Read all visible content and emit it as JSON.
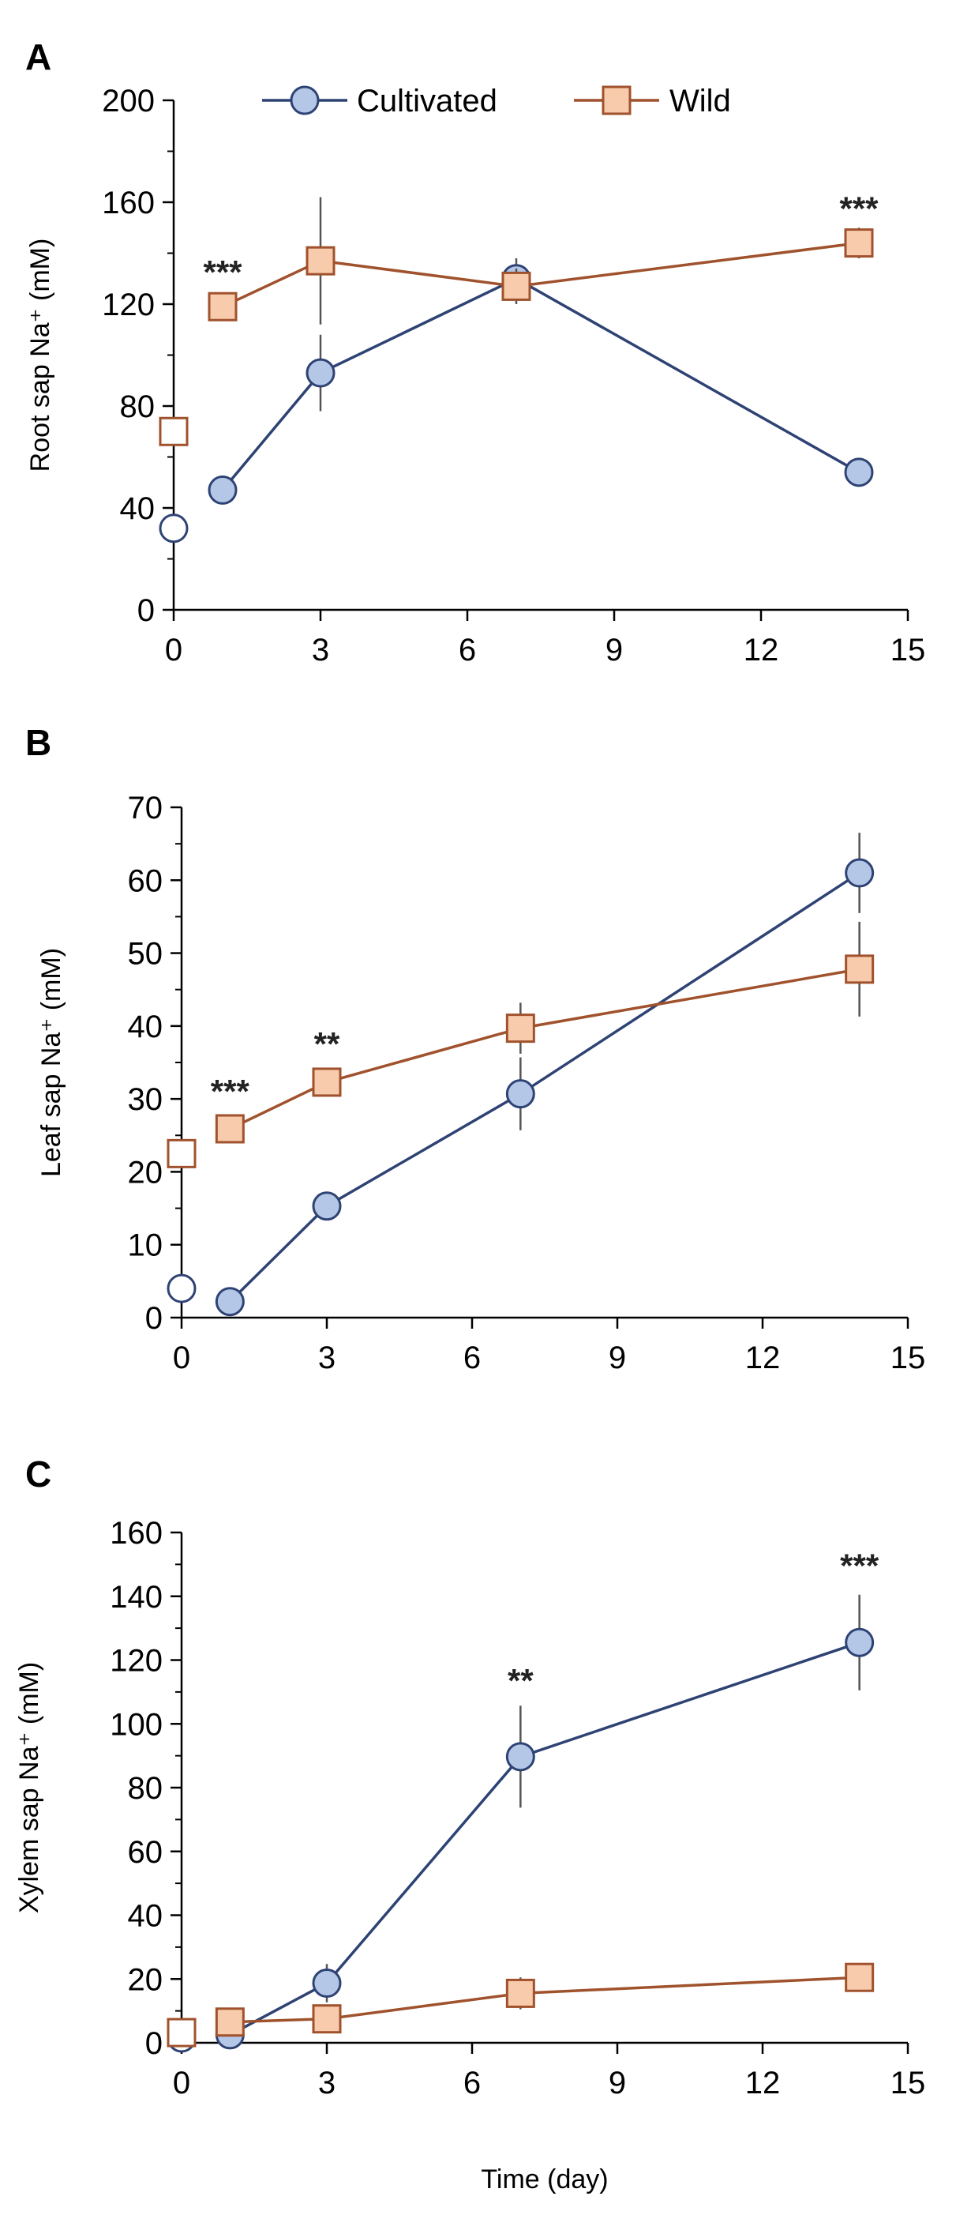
{
  "colors": {
    "cultivated_line": "#2E4374",
    "cultivated_fill": "#B4C7E7",
    "wild_line": "#A0522D",
    "wild_fill": "#F8CBAD",
    "error_bar": "#555555",
    "axis": "#000000"
  },
  "legend": {
    "placement": "top",
    "items": [
      {
        "label": "Cultivated",
        "marker": "circle"
      },
      {
        "label": "Wild",
        "marker": "square"
      }
    ]
  },
  "chart_data": [
    {
      "panel": "A",
      "type": "line",
      "title": "",
      "xlabel": "",
      "ylabel": "Root sap Na⁺ (mM)",
      "xlim": [
        0,
        15
      ],
      "ylim": [
        0,
        200
      ],
      "xticks": [
        0,
        3,
        6,
        9,
        12,
        15
      ],
      "yticks": [
        0,
        40,
        80,
        120,
        160,
        200
      ],
      "grid": false,
      "series": [
        {
          "name": "Cultivated",
          "baseline": {
            "x": 0,
            "y": 32
          },
          "points": [
            {
              "x": 1,
              "y": 47,
              "err": 5
            },
            {
              "x": 3,
              "y": 93,
              "err": 15
            },
            {
              "x": 7,
              "y": 130,
              "err": 8
            },
            {
              "x": 14,
              "y": 54,
              "err": 2
            }
          ]
        },
        {
          "name": "Wild",
          "baseline": {
            "x": 0,
            "y": 70
          },
          "points": [
            {
              "x": 1,
              "y": 119,
              "err": 5
            },
            {
              "x": 3,
              "y": 137,
              "err": 25
            },
            {
              "x": 7,
              "y": 127,
              "err": 7
            },
            {
              "x": 14,
              "y": 144,
              "err": 6
            }
          ]
        }
      ],
      "annotations": [
        {
          "text": "***",
          "x": 1,
          "y": 128
        },
        {
          "text": "***",
          "x": 14,
          "y": 153
        }
      ]
    },
    {
      "panel": "B",
      "type": "line",
      "title": "",
      "xlabel": "",
      "ylabel": "Leaf sap Na⁺ (mM)",
      "xlim": [
        0,
        15
      ],
      "ylim": [
        0,
        70
      ],
      "xticks": [
        0,
        3,
        6,
        9,
        12,
        15
      ],
      "yticks": [
        0,
        10,
        20,
        30,
        40,
        50,
        60,
        70
      ],
      "grid": false,
      "series": [
        {
          "name": "Cultivated",
          "baseline": {
            "x": 0,
            "y": 4
          },
          "points": [
            {
              "x": 1,
              "y": 2.2,
              "err": 0.5
            },
            {
              "x": 3,
              "y": 15.3,
              "err": 1
            },
            {
              "x": 7,
              "y": 30.7,
              "err": 5
            },
            {
              "x": 14,
              "y": 61,
              "err": 5.5
            }
          ]
        },
        {
          "name": "Wild",
          "baseline": {
            "x": 0,
            "y": 22.5
          },
          "points": [
            {
              "x": 1,
              "y": 25.9,
              "err": 0.8
            },
            {
              "x": 3,
              "y": 32.3,
              "err": 1.2
            },
            {
              "x": 7,
              "y": 39.7,
              "err": 3.5
            },
            {
              "x": 14,
              "y": 47.8,
              "err": 6.5
            }
          ]
        }
      ],
      "annotations": [
        {
          "text": "***",
          "x": 1,
          "y": 29.5
        },
        {
          "text": "**",
          "x": 3,
          "y": 36
        }
      ]
    },
    {
      "panel": "C",
      "type": "line",
      "title": "",
      "xlabel": "Time (day)",
      "ylabel": "Xylem sap Na⁺ (mM)",
      "xlim": [
        0,
        15
      ],
      "ylim": [
        0,
        160
      ],
      "xticks": [
        0,
        3,
        6,
        9,
        12,
        15
      ],
      "yticks": [
        0,
        20,
        40,
        60,
        80,
        100,
        120,
        140,
        160
      ],
      "grid": false,
      "series": [
        {
          "name": "Cultivated",
          "baseline": {
            "x": 0,
            "y": 1.5
          },
          "points": [
            {
              "x": 1,
              "y": 2.5,
              "err": 0.8
            },
            {
              "x": 3,
              "y": 18.7,
              "err": 6
            },
            {
              "x": 7,
              "y": 89.7,
              "err": 16
            },
            {
              "x": 14,
              "y": 125.5,
              "err": 15
            }
          ]
        },
        {
          "name": "Wild",
          "baseline": {
            "x": 0,
            "y": 3.2
          },
          "points": [
            {
              "x": 1,
              "y": 6.5,
              "err": 1.5
            },
            {
              "x": 3,
              "y": 7.5,
              "err": 2
            },
            {
              "x": 7,
              "y": 15.5,
              "err": 5
            },
            {
              "x": 14,
              "y": 20.5,
              "err": 2
            }
          ]
        }
      ],
      "annotations": [
        {
          "text": "**",
          "x": 7,
          "y": 110
        },
        {
          "text": "***",
          "x": 14,
          "y": 146
        }
      ]
    }
  ]
}
